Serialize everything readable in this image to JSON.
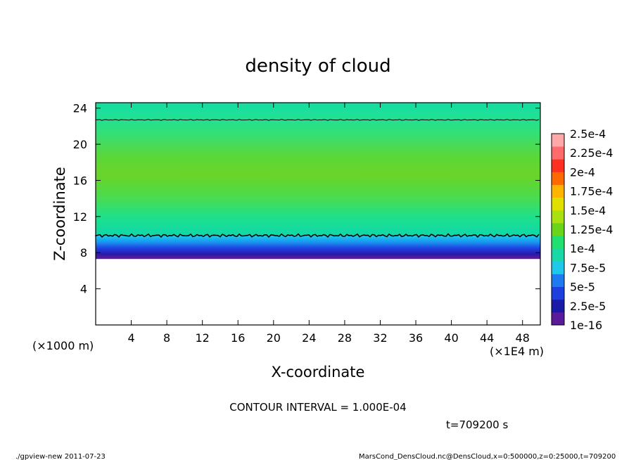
{
  "chart_data": {
    "type": "heatmap",
    "title": "density of cloud",
    "xlabel": "X-coordinate",
    "ylabel": "Z-coordinate",
    "x_unit_left": "(×1000 m)",
    "x_unit_right": "(×1E4 m)",
    "xlim": [
      0,
      50
    ],
    "ylim": [
      0,
      24.6
    ],
    "x_ticks": [
      4,
      8,
      12,
      16,
      20,
      24,
      28,
      32,
      36,
      40,
      44,
      48
    ],
    "y_ticks": [
      4,
      8,
      12,
      16,
      20,
      24
    ],
    "cloud_base_z": 7.3,
    "cloud_top_z": 24.6,
    "contour_levels_z": [
      9.9,
      22.7
    ],
    "colorbar": {
      "labels": [
        "1e-16",
        "2.5e-5",
        "5e-5",
        "7.5e-5",
        "1e-4",
        "1.25e-4",
        "1.5e-4",
        "1.75e-4",
        "2e-4",
        "2.25e-4",
        "2.5e-4"
      ],
      "colors": [
        "#5a1a9a",
        "#1a1aa8",
        "#1e3fe0",
        "#1e7af0",
        "#1ec8ea",
        "#18d8a8",
        "#20e070",
        "#6ad418",
        "#a8e010",
        "#e0e000",
        "#ffb400",
        "#ff6a00",
        "#ff3020",
        "#ff6a6a",
        "#ffa8a8"
      ]
    }
  },
  "annotations": {
    "contour_interval": "CONTOUR INTERVAL = 1.000E-04",
    "time": "t=709200 s"
  },
  "footer": {
    "program": "./gpview-new   2011-07-23",
    "source": "MarsCond_DensCloud.nc@DensCloud,x=0:500000,z=0:25000,t=709200"
  }
}
